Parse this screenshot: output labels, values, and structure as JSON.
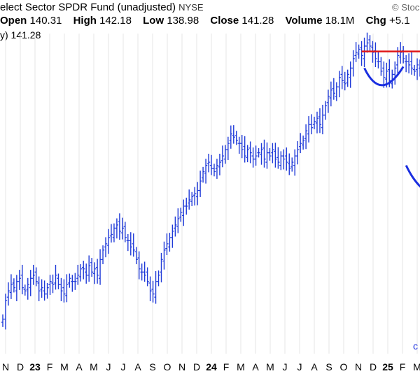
{
  "header": {
    "title": "elect Sector SPDR Fund (unadjusted)",
    "exchange": "NYSE",
    "watermark": "© Stoc",
    "open_label": "Open",
    "open_value": "140.31",
    "high_label": "High",
    "high_value": "142.18",
    "low_label": "Low",
    "low_value": "138.98",
    "close_label": "Close",
    "close_value": "141.28",
    "volume_label": "Volume",
    "volume_value": "18.1M",
    "chg_label": "Chg",
    "chg_value": "+5.1",
    "series_label": "y) 141.28"
  },
  "colors": {
    "bars": "#1f3ad8",
    "resistance": "#e01818",
    "annotation": "#1a2ee0",
    "grid": "#e6e6e6"
  },
  "chart_data": {
    "type": "ohlc",
    "title": "elect Sector SPDR Fund (unadjusted)",
    "x_tick_labels": [
      "N",
      "D",
      "23",
      "F",
      "M",
      "A",
      "M",
      "J",
      "J",
      "A",
      "S",
      "O",
      "N",
      "D",
      "24",
      "F",
      "M",
      "A",
      "M",
      "J",
      "J",
      "A",
      "S",
      "O",
      "N",
      "D",
      "25",
      "F",
      "M"
    ],
    "ylim": [
      45,
      147
    ],
    "weekly_close_trace": [
      [
        0,
        56
      ],
      [
        1,
        62
      ],
      [
        2,
        65
      ],
      [
        3,
        67
      ],
      [
        4,
        66
      ],
      [
        5,
        68
      ],
      [
        6,
        69
      ],
      [
        7,
        66
      ],
      [
        8,
        65
      ],
      [
        9,
        67
      ],
      [
        10,
        69
      ],
      [
        11,
        70
      ],
      [
        12,
        68
      ],
      [
        13,
        65
      ],
      [
        14,
        66
      ],
      [
        15,
        64
      ],
      [
        16,
        66
      ],
      [
        17,
        68
      ],
      [
        18,
        67
      ],
      [
        19,
        70
      ],
      [
        20,
        67
      ],
      [
        21,
        65
      ],
      [
        22,
        64
      ],
      [
        23,
        67
      ],
      [
        24,
        69
      ],
      [
        25,
        68
      ],
      [
        26,
        68
      ],
      [
        27,
        70
      ],
      [
        28,
        72
      ],
      [
        29,
        72
      ],
      [
        30,
        70
      ],
      [
        31,
        73
      ],
      [
        32,
        71
      ],
      [
        33,
        72
      ],
      [
        34,
        70
      ],
      [
        35,
        75
      ],
      [
        36,
        78
      ],
      [
        37,
        80
      ],
      [
        38,
        82
      ],
      [
        39,
        83
      ],
      [
        40,
        85
      ],
      [
        41,
        86
      ],
      [
        42,
        84
      ],
      [
        43,
        85
      ],
      [
        44,
        82
      ],
      [
        45,
        81
      ],
      [
        46,
        79
      ],
      [
        47,
        78
      ],
      [
        48,
        75
      ],
      [
        49,
        72
      ],
      [
        50,
        71
      ],
      [
        51,
        70
      ],
      [
        52,
        68
      ],
      [
        53,
        65
      ],
      [
        54,
        64
      ],
      [
        55,
        68
      ],
      [
        56,
        70
      ],
      [
        57,
        75
      ],
      [
        58,
        78
      ],
      [
        59,
        80
      ],
      [
        60,
        82
      ],
      [
        61,
        84
      ],
      [
        62,
        86
      ],
      [
        63,
        88
      ],
      [
        64,
        90
      ],
      [
        65,
        92
      ],
      [
        66,
        92
      ],
      [
        67,
        94
      ],
      [
        68,
        95
      ],
      [
        69,
        96
      ],
      [
        70,
        97
      ],
      [
        71,
        100
      ],
      [
        72,
        103
      ],
      [
        73,
        105
      ],
      [
        74,
        106
      ],
      [
        75,
        104
      ],
      [
        76,
        103
      ],
      [
        77,
        105
      ],
      [
        78,
        106
      ],
      [
        79,
        108
      ],
      [
        80,
        110
      ],
      [
        81,
        112
      ],
      [
        82,
        115
      ],
      [
        83,
        114
      ],
      [
        84,
        113
      ],
      [
        85,
        112
      ],
      [
        86,
        110
      ],
      [
        87,
        108
      ],
      [
        88,
        110
      ],
      [
        89,
        109
      ],
      [
        90,
        107
      ],
      [
        91,
        108
      ],
      [
        92,
        109
      ],
      [
        93,
        110
      ],
      [
        94,
        107
      ],
      [
        95,
        109
      ],
      [
        96,
        108
      ],
      [
        97,
        110
      ],
      [
        98,
        107
      ],
      [
        99,
        106
      ],
      [
        100,
        108
      ],
      [
        101,
        107
      ],
      [
        102,
        106
      ],
      [
        103,
        104
      ],
      [
        104,
        106
      ],
      [
        105,
        108
      ],
      [
        106,
        110
      ],
      [
        107,
        112
      ],
      [
        108,
        113
      ],
      [
        109,
        116
      ],
      [
        110,
        118
      ],
      [
        111,
        117
      ],
      [
        112,
        119
      ],
      [
        113,
        120
      ],
      [
        114,
        118
      ],
      [
        115,
        121
      ],
      [
        116,
        124
      ],
      [
        117,
        127
      ],
      [
        118,
        129
      ],
      [
        119,
        128
      ],
      [
        120,
        130
      ],
      [
        121,
        133
      ],
      [
        122,
        132
      ],
      [
        123,
        131
      ],
      [
        124,
        134
      ],
      [
        125,
        136
      ],
      [
        126,
        139
      ],
      [
        127,
        141
      ],
      [
        128,
        142
      ],
      [
        129,
        140
      ],
      [
        130,
        143
      ],
      [
        131,
        144
      ],
      [
        132,
        143
      ],
      [
        133,
        141
      ],
      [
        134,
        139
      ],
      [
        135,
        138
      ],
      [
        136,
        135
      ],
      [
        137,
        133
      ],
      [
        138,
        135
      ],
      [
        139,
        132
      ],
      [
        140,
        134
      ],
      [
        141,
        136
      ],
      [
        142,
        140
      ],
      [
        143,
        141
      ],
      [
        144,
        139
      ],
      [
        145,
        138
      ],
      [
        146,
        137
      ],
      [
        147,
        136
      ],
      [
        148,
        135
      ],
      [
        149,
        137
      ],
      [
        150,
        136
      ]
    ],
    "resistance_level": 141.28
  }
}
